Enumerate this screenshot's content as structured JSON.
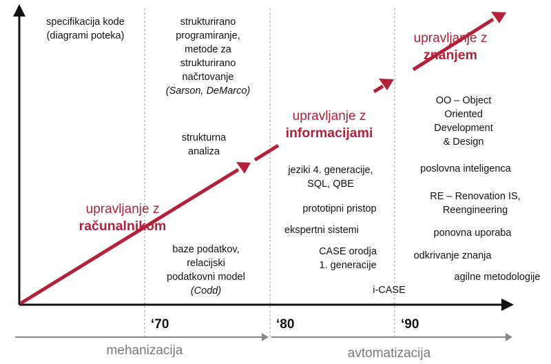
{
  "colors": {
    "accent": "#b5203a",
    "axis": "#111111",
    "muted": "#888888"
  },
  "timeline": {
    "decades": [
      "‘70",
      "‘80",
      "‘90"
    ],
    "eras": [
      "mehanizacija",
      "avtomatizacija"
    ]
  },
  "management": [
    {
      "line1": "upravljanje z",
      "line2": "računalnikom"
    },
    {
      "line1": "upravljanje z",
      "line2": "informacijami"
    },
    {
      "line1": "upravljanje z",
      "line2": "znanjem"
    }
  ],
  "col1": {
    "spec": [
      "specifikacija kode",
      "(diagrami poteka)"
    ]
  },
  "col2": {
    "structured": [
      "strukturirano",
      "programiranje,",
      "metode za",
      "strukturirano",
      "načrtovanje"
    ],
    "structured_authors": "(Sarson, DeMarco)",
    "analysis": [
      "strukturna",
      "analiza"
    ],
    "databases": [
      "baze podatkov,",
      "relacijski",
      "podatkovni model"
    ],
    "databases_author": "(Codd)"
  },
  "col3": {
    "gen4": [
      "jeziki 4. generacije,",
      "SQL, QBE"
    ],
    "prototype": "prototipni pristop",
    "expert": "ekspertni sistemi",
    "case": [
      "CASE orodja",
      "1. generacije"
    ],
    "icase": "i-CASE"
  },
  "col4": {
    "oo": [
      "OO – Object",
      "Oriented",
      "Development",
      "& Design"
    ],
    "bi": "poslovna inteligenca",
    "re": [
      "RE – Renovation IS,",
      "Reengineering"
    ],
    "reuse": "ponovna uporaba",
    "discovery": "odkrivanje znanja",
    "agile": "agilne metodologije"
  }
}
